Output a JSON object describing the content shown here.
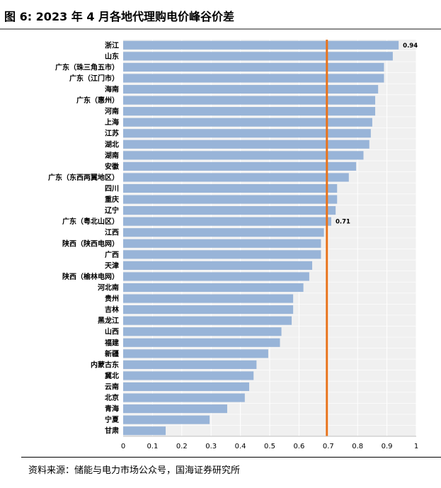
{
  "header": {
    "title": "图 6:  2023 年 4 月各地代理购电价峰谷价差"
  },
  "footer": {
    "source": "资料来源：储能与电力市场公众号，国海证券研究所"
  },
  "colors": {
    "bar": "#98b4d8",
    "plot_bg": "#f0f0f0",
    "ref_line": "#e8731c"
  },
  "chart_data": {
    "type": "bar",
    "orientation": "horizontal",
    "title": "",
    "xlabel": "",
    "ylabel": "",
    "xlim": [
      0,
      1
    ],
    "xticks": [
      0,
      0.1,
      0.2,
      0.3,
      0.4,
      0.5,
      0.6,
      0.7,
      0.8,
      0.9,
      1
    ],
    "xtick_labels": [
      "0",
      "0.1",
      "0.2",
      "0.3",
      "0.4",
      "0.5",
      "0.6",
      "0.7",
      "0.8",
      "0.9",
      "1"
    ],
    "reference_line": 0.7,
    "grid": true,
    "categories": [
      "浙江",
      "山东",
      "广东（珠三角五市）",
      "广东（江门市）",
      "海南",
      "广东（惠州）",
      "河南",
      "上海",
      "江苏",
      "湖北",
      "湖南",
      "安徽",
      "广东（东西两翼地区）",
      "四川",
      "重庆",
      "辽宁",
      "广东（粤北山区）",
      "江西",
      "陕西（陕西电网）",
      "广西",
      "天津",
      "陕西（榆林电网）",
      "河北南",
      "贵州",
      "吉林",
      "黑龙江",
      "山西",
      "福建",
      "新疆",
      "内蒙古东",
      "冀北",
      "云南",
      "北京",
      "青海",
      "宁夏",
      "甘肃"
    ],
    "values": [
      0.94,
      0.92,
      0.89,
      0.89,
      0.87,
      0.86,
      0.86,
      0.85,
      0.845,
      0.84,
      0.82,
      0.795,
      0.77,
      0.73,
      0.73,
      0.725,
      0.71,
      0.685,
      0.675,
      0.675,
      0.645,
      0.635,
      0.615,
      0.58,
      0.58,
      0.575,
      0.54,
      0.535,
      0.495,
      0.455,
      0.445,
      0.43,
      0.415,
      0.355,
      0.295,
      0.145
    ],
    "data_labels": [
      {
        "index": 0,
        "text": "0.94"
      },
      {
        "index": 16,
        "text": "0.71"
      }
    ]
  }
}
